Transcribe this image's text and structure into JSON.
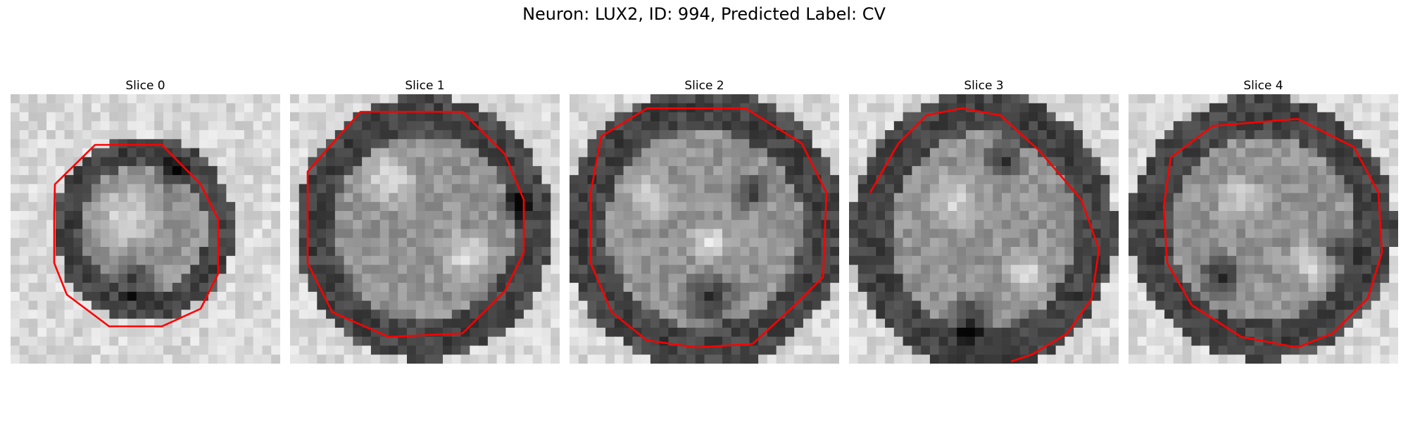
{
  "figure": {
    "title": "Neuron: LUX2, ID: 994, Predicted Label: CV",
    "contour_color": "#ff0000"
  },
  "panels": [
    {
      "title": "Slice 0"
    },
    {
      "title": "Slice 1"
    },
    {
      "title": "Slice 2"
    },
    {
      "title": "Slice 3"
    },
    {
      "title": "Slice 4"
    }
  ]
}
